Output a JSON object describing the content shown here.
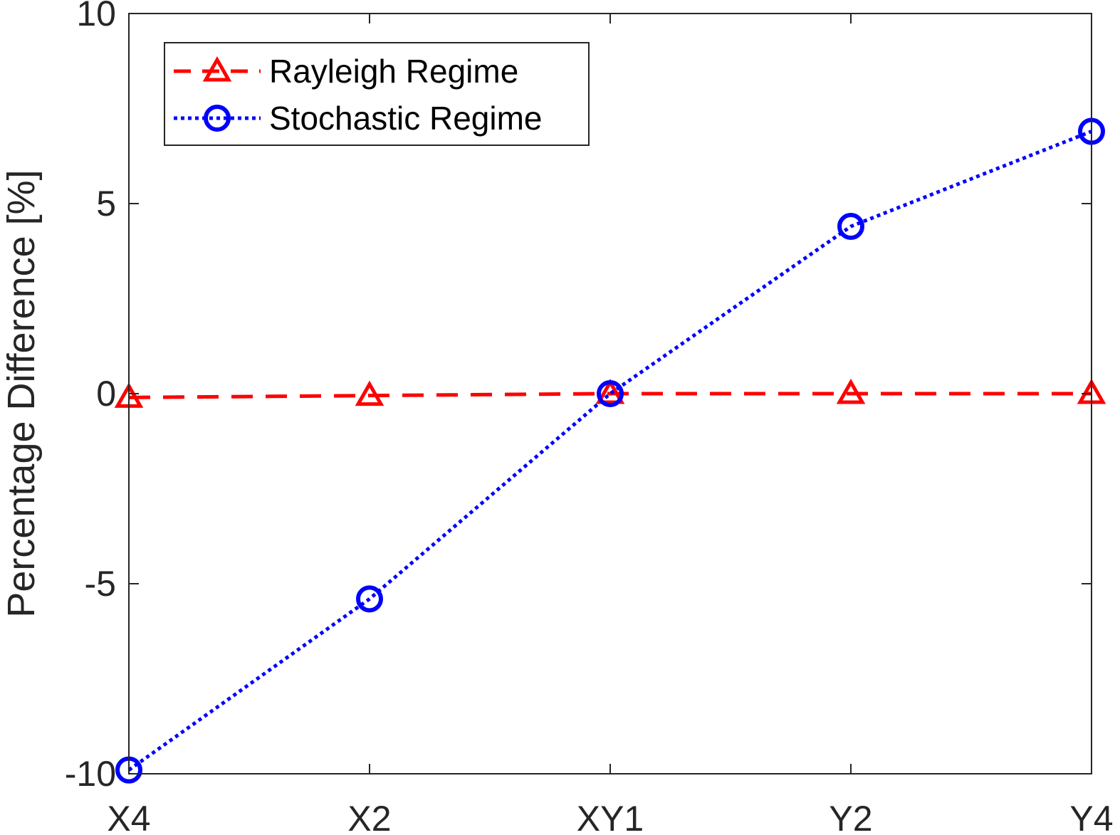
{
  "chart_data": {
    "type": "line",
    "categories": [
      "X4",
      "X2",
      "XY1",
      "Y2",
      "Y4"
    ],
    "ylabel": "Percentage Difference [%]",
    "xlabel": "",
    "ylim": [
      -10,
      10
    ],
    "yticks": [
      "-10",
      "-5",
      "0",
      "5",
      "10"
    ],
    "grid": false,
    "legend_position": "top-left",
    "series": [
      {
        "name": "Rayleigh Regime",
        "values": [
          -0.1,
          -0.05,
          0.0,
          0.0,
          0.0
        ],
        "color": "#ff0000",
        "line_style": "dashed",
        "marker": "triangle"
      },
      {
        "name": "Stochastic Regime",
        "values": [
          -9.9,
          -5.4,
          0.0,
          4.4,
          6.9
        ],
        "color": "#0000ff",
        "line_style": "dotted",
        "marker": "circle"
      }
    ]
  }
}
